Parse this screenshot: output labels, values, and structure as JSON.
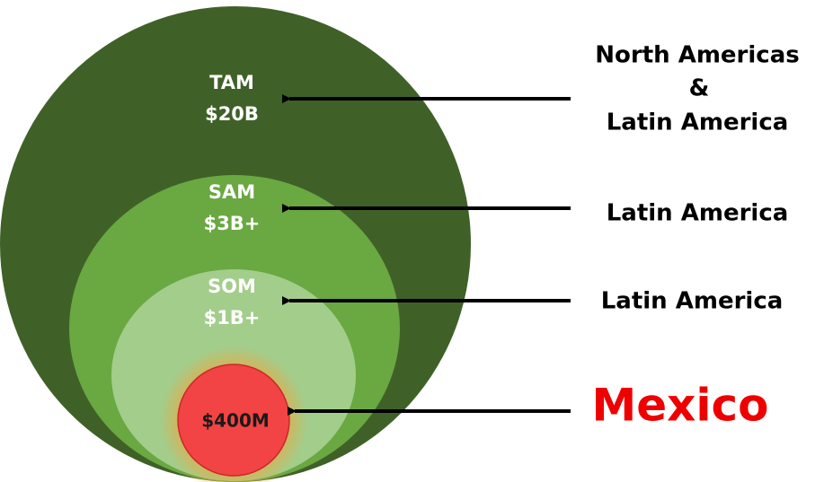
{
  "markets": [
    {
      "name": "TAM",
      "value": "$20B",
      "region": [
        "North Americas",
        "&",
        "Latin America"
      ]
    },
    {
      "name": "SAM",
      "value": "$3B+",
      "region": [
        "Latin America"
      ]
    },
    {
      "name": "SOM",
      "value": "$1B+",
      "region": [
        "Latin America"
      ]
    },
    {
      "value": "$400M",
      "region": [
        "Mexico"
      ]
    }
  ]
}
